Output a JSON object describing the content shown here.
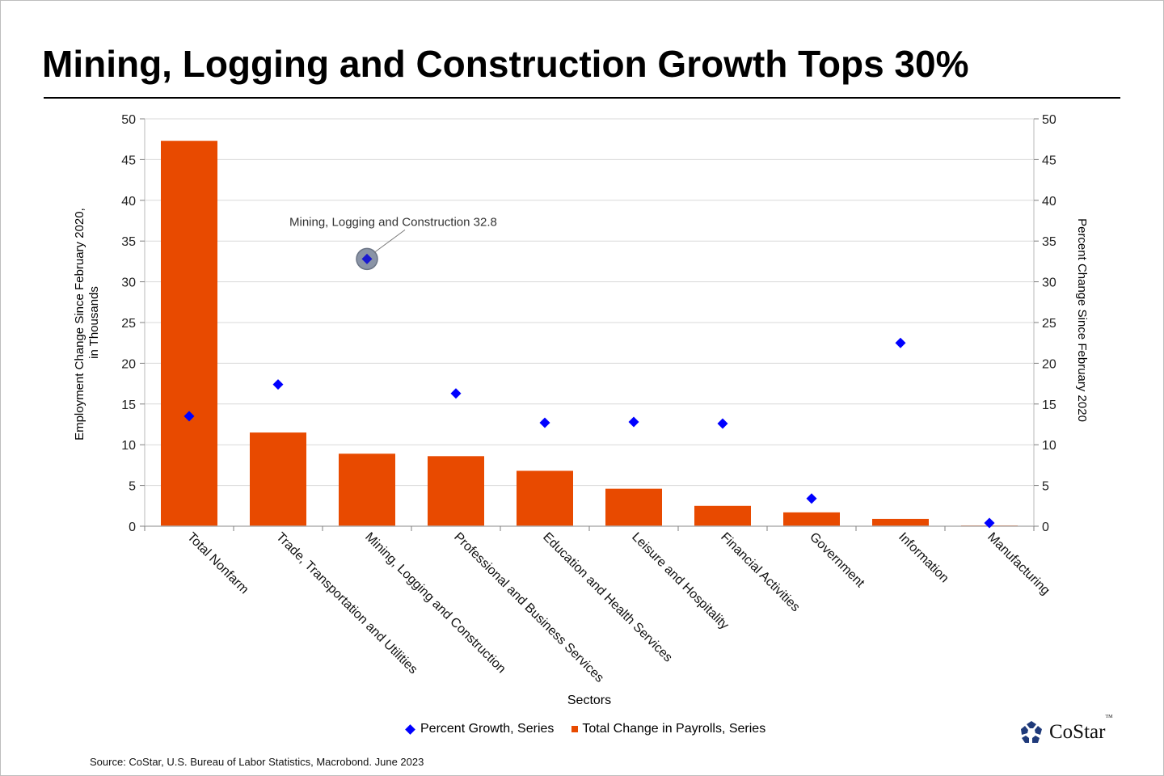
{
  "title": "Mining, Logging and Construction Growth Tops 30%",
  "source": "Source: CoStar, U.S. Bureau of Labor Statistics, Macrobond. June 2023",
  "logo": {
    "name": "CoStar",
    "tm": "TM",
    "color": "#1f3a7a"
  },
  "legend": [
    {
      "label": "Percent Growth, Series",
      "marker": "diamond",
      "color": "#0000ff"
    },
    {
      "label": "Total Change in Payrolls, Series",
      "marker": "square",
      "color": "#e84a00"
    }
  ],
  "chart_data": {
    "type": "bar",
    "title": "Mining, Logging and Construction Growth Tops 30%",
    "xlabel": "Sectors",
    "ylabel": "Employment Change Since February 2020, in Thousands",
    "ylabel_lines": [
      "Employment Change Since February 2020,",
      "in Thousands"
    ],
    "y2label": "Percent Change Since February 2020",
    "ylim": [
      0,
      50
    ],
    "y2lim": [
      0,
      50
    ],
    "yticks": [
      0,
      5,
      10,
      15,
      20,
      25,
      30,
      35,
      40,
      45,
      50
    ],
    "grid": true,
    "legend_position": "bottom",
    "categories": [
      "Total Nonfarm",
      "Trade, Transportation and Utilities",
      "Mining, Logging and Construction",
      "Professional and Business Services",
      "Education and Health Services",
      "Leisure and Hospitality",
      "Financial Activities",
      "Government",
      "Information",
      "Manufacturing"
    ],
    "series": [
      {
        "name": "Total Change in Payrolls, Series",
        "type": "bar",
        "axis": "left",
        "color": "#e84a00",
        "values": [
          47.3,
          11.5,
          8.9,
          8.6,
          6.8,
          4.6,
          2.5,
          1.7,
          0.9,
          0.1
        ]
      },
      {
        "name": "Percent Growth, Series",
        "type": "scatter",
        "marker": "diamond",
        "axis": "right",
        "color": "#0000ff",
        "values": [
          13.5,
          17.4,
          32.8,
          16.3,
          12.7,
          12.8,
          12.6,
          3.4,
          22.5,
          0.4
        ]
      }
    ],
    "annotations": [
      {
        "text": "Mining, Logging and Construction 32.8",
        "category": "Mining, Logging and Construction",
        "series": "Percent Growth, Series",
        "value": 32.8
      }
    ]
  }
}
